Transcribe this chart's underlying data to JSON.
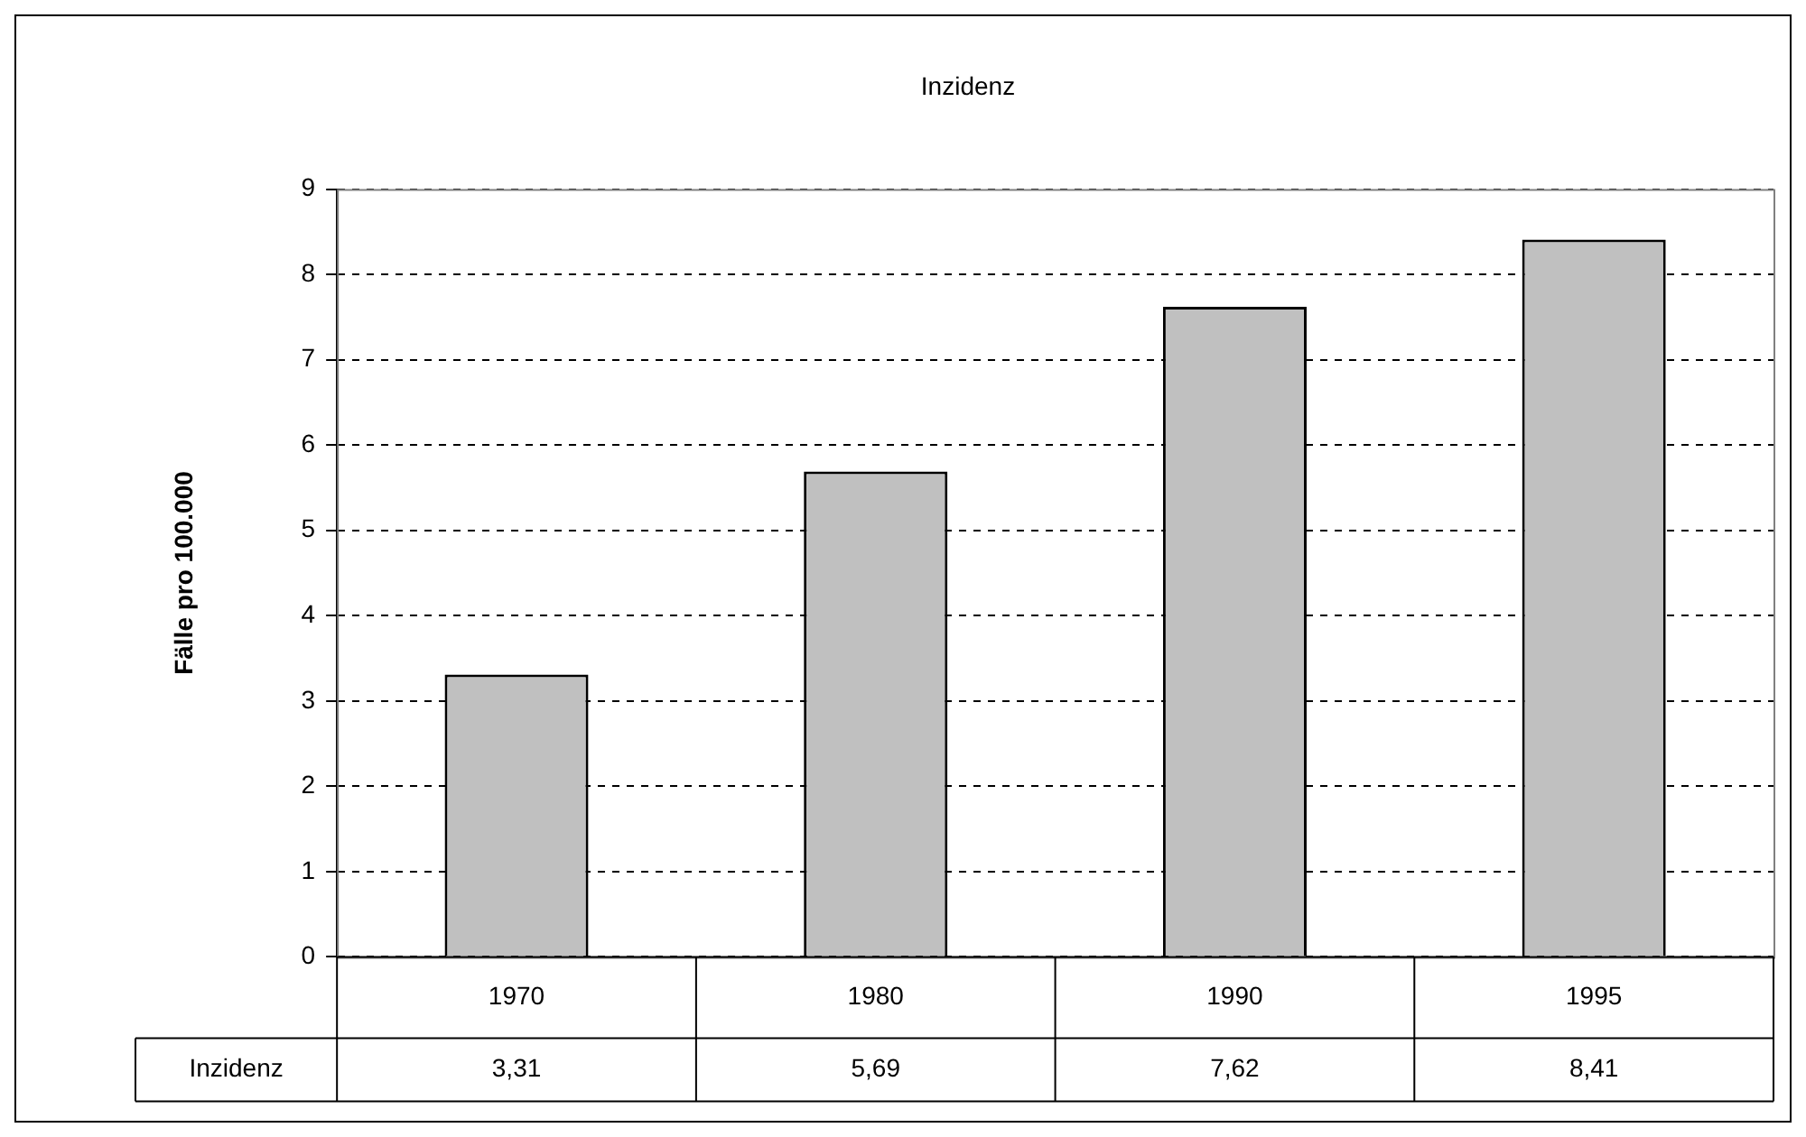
{
  "chart_data": {
    "type": "bar",
    "title": "Inzidenz",
    "ylabel": "Fälle pro 100.000",
    "categories": [
      "1970",
      "1980",
      "1990",
      "1995"
    ],
    "series": [
      {
        "name": "Inzidenz",
        "color": "#c0c0c0",
        "values": [
          3.31,
          5.69,
          7.62,
          8.41
        ],
        "value_labels": [
          "3,31",
          "5,69",
          "7,62",
          "8,41"
        ]
      }
    ],
    "ylim": [
      0,
      9
    ],
    "yticks": [
      0,
      1,
      2,
      3,
      4,
      5,
      6,
      7,
      8,
      9
    ],
    "grid": "y",
    "line_style": "dashed",
    "legend": false
  }
}
